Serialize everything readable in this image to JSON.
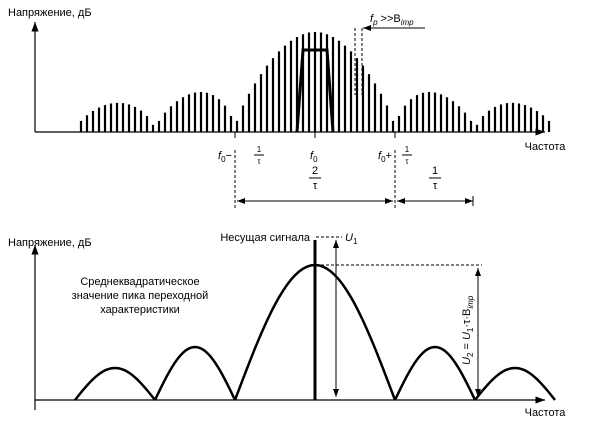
{
  "top": {
    "y_label": "Напряжение, дБ",
    "x_label": "Частота",
    "fp": {
      "main": "f",
      "sub": "p",
      "rel": ">>B",
      "rel_sub": "imp"
    },
    "f0_minus": {
      "f": "f",
      "sub": "0",
      "op": "−",
      "num": "1",
      "den": "τ"
    },
    "f0": {
      "f": "f",
      "sub": "0"
    },
    "f0_plus": {
      "f": "f",
      "sub": "0",
      "op": "+",
      "num": "1",
      "den": "τ"
    },
    "span_wide": {
      "num": "2",
      "den": "τ"
    },
    "span_narrow": {
      "num": "1",
      "den": "τ"
    }
  },
  "bottom": {
    "y_label": "Напряжение, дБ",
    "x_label": "Частота",
    "carrier": "Несущая сигнала",
    "u1": {
      "main": "U",
      "sub": "1"
    },
    "rms_note": [
      "Среднеквадратическое",
      "значение пика переходной",
      "характеристики"
    ],
    "u2": {
      "main": "U",
      "sub": "2",
      "eq": " = ",
      "u1": "U",
      "u1_sub": "1",
      "rest": "·τ·B",
      "b_sub": "imp"
    }
  }
}
